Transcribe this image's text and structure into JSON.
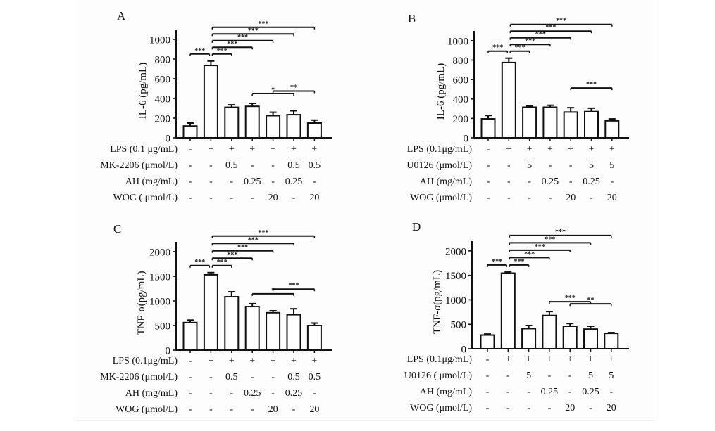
{
  "chart_data": [
    {
      "panel": "A",
      "type": "bar",
      "ylabel": "IL-6 (pg/mL)",
      "ylim": [
        0,
        1100
      ],
      "yticks": [
        0,
        200,
        400,
        600,
        800,
        1000
      ],
      "categories": [
        "1",
        "2",
        "3",
        "4",
        "5",
        "6",
        "7"
      ],
      "values": [
        120,
        735,
        310,
        320,
        225,
        235,
        150
      ],
      "errors": [
        30,
        45,
        25,
        30,
        35,
        40,
        30
      ],
      "treatments": [
        {
          "label": "LPS (0.1 μg/mL)",
          "cells": [
            "-",
            "+",
            "+",
            "+",
            "+",
            "+",
            "+"
          ]
        },
        {
          "label": "MK-2206 (μmol/L)",
          "cells": [
            "-",
            "-",
            "0.5",
            "-",
            "-",
            "0.5",
            "0.5"
          ]
        },
        {
          "label": "AH (mg/mL)",
          "cells": [
            "-",
            "-",
            "-",
            "0.25",
            "-",
            "0.25",
            "-"
          ]
        },
        {
          "label": "WOG ( μmol/L)",
          "cells": [
            "-",
            "-",
            "-",
            "-",
            "20",
            "-",
            "20"
          ]
        }
      ],
      "significance": [
        {
          "from": 1,
          "to": 2,
          "label": "***"
        },
        {
          "from": 2,
          "to": 3,
          "label": "***"
        },
        {
          "from": 2,
          "to": 4,
          "label": "***"
        },
        {
          "from": 2,
          "to": 5,
          "label": "***"
        },
        {
          "from": 2,
          "to": 6,
          "label": "***"
        },
        {
          "from": 2,
          "to": 7,
          "label": "***"
        },
        {
          "from": 4,
          "to": 6,
          "label": "*"
        },
        {
          "from": 5,
          "to": 7,
          "label": "**"
        }
      ]
    },
    {
      "panel": "B",
      "type": "bar",
      "ylabel": "IL-6 (pg/mL)",
      "ylim": [
        0,
        1100
      ],
      "yticks": [
        0,
        200,
        400,
        600,
        800,
        1000
      ],
      "categories": [
        "1",
        "2",
        "3",
        "4",
        "5",
        "6",
        "7"
      ],
      "values": [
        195,
        775,
        315,
        315,
        265,
        270,
        175
      ],
      "errors": [
        35,
        45,
        12,
        20,
        45,
        35,
        20
      ],
      "treatments": [
        {
          "label": "LPS  (0.1μg/mL)",
          "cells": [
            "-",
            "+",
            "+",
            "+",
            "+",
            "+",
            "+"
          ]
        },
        {
          "label": "U0126 (μmol/L)",
          "cells": [
            "-",
            "-",
            "5",
            "-",
            "-",
            "5",
            "5"
          ]
        },
        {
          "label": "AH (mg/mL)",
          "cells": [
            "-",
            "-",
            "-",
            "0.25",
            "-",
            "0.25",
            "-"
          ]
        },
        {
          "label": "WOG (μmol/L)",
          "cells": [
            "-",
            "-",
            "-",
            "-",
            "20",
            "-",
            "20"
          ]
        }
      ],
      "significance": [
        {
          "from": 1,
          "to": 2,
          "label": "***"
        },
        {
          "from": 2,
          "to": 3,
          "label": "***"
        },
        {
          "from": 2,
          "to": 4,
          "label": "***"
        },
        {
          "from": 2,
          "to": 5,
          "label": "***"
        },
        {
          "from": 2,
          "to": 6,
          "label": "***"
        },
        {
          "from": 2,
          "to": 7,
          "label": "***"
        },
        {
          "from": 5,
          "to": 7,
          "label": "***"
        }
      ]
    },
    {
      "panel": "C",
      "type": "bar",
      "ylabel": "TNF-α(pg/mL)",
      "ylim": [
        0,
        2200
      ],
      "yticks": [
        0,
        500,
        1000,
        1500,
        2000
      ],
      "categories": [
        "1",
        "2",
        "3",
        "4",
        "5",
        "6",
        "7"
      ],
      "values": [
        560,
        1530,
        1085,
        885,
        760,
        720,
        500
      ],
      "errors": [
        50,
        45,
        100,
        60,
        40,
        120,
        50
      ],
      "treatments": [
        {
          "label": "LPS (0.1μg/mL)",
          "cells": [
            "-",
            "+",
            "+",
            "+",
            "+",
            "+",
            "+"
          ]
        },
        {
          "label": "MK-2206 (μmol/L)",
          "cells": [
            "-",
            "-",
            "0.5",
            "-",
            "-",
            "0.5",
            "0.5"
          ]
        },
        {
          "label": "AH (mg/mL)",
          "cells": [
            "-",
            "-",
            "-",
            "0.25",
            "-",
            "0.25",
            "-"
          ]
        },
        {
          "label": "WOG (μmol/L)",
          "cells": [
            "-",
            "-",
            "-",
            "-",
            "20",
            "-",
            "20"
          ]
        }
      ],
      "significance": [
        {
          "from": 1,
          "to": 2,
          "label": "***"
        },
        {
          "from": 2,
          "to": 3,
          "label": "***"
        },
        {
          "from": 2,
          "to": 4,
          "label": "***"
        },
        {
          "from": 2,
          "to": 5,
          "label": "***"
        },
        {
          "from": 2,
          "to": 6,
          "label": "***"
        },
        {
          "from": 2,
          "to": 7,
          "label": "***"
        },
        {
          "from": 4,
          "to": 6,
          "label": "*"
        },
        {
          "from": 5,
          "to": 7,
          "label": "***"
        }
      ]
    },
    {
      "panel": "D",
      "type": "bar",
      "ylabel": "TNF-α(pg/mL)",
      "ylim": [
        0,
        2200
      ],
      "yticks": [
        0,
        500,
        1000,
        1500,
        2000
      ],
      "categories": [
        "1",
        "2",
        "3",
        "4",
        "5",
        "6",
        "7"
      ],
      "values": [
        280,
        1545,
        410,
        680,
        460,
        400,
        315
      ],
      "errors": [
        20,
        25,
        65,
        80,
        55,
        60,
        15
      ],
      "treatments": [
        {
          "label": "LPS (0.1μg/mL)",
          "cells": [
            "-",
            "+",
            "+",
            "+",
            "+",
            "+",
            "+"
          ]
        },
        {
          "label": "U0126 ( μmol/L)",
          "cells": [
            "-",
            "-",
            "5",
            "-",
            "-",
            "5",
            "5"
          ]
        },
        {
          "label": "AH (mg/mL)",
          "cells": [
            "-",
            "-",
            "-",
            "0.25",
            "-",
            "0.25",
            "-"
          ]
        },
        {
          "label": "WOG (μmol/L)",
          "cells": [
            "-",
            "-",
            "-",
            "-",
            "20",
            "-",
            "20"
          ]
        }
      ],
      "significance": [
        {
          "from": 1,
          "to": 2,
          "label": "***"
        },
        {
          "from": 2,
          "to": 3,
          "label": "***"
        },
        {
          "from": 2,
          "to": 4,
          "label": "***"
        },
        {
          "from": 2,
          "to": 5,
          "label": "***"
        },
        {
          "from": 2,
          "to": 6,
          "label": "***"
        },
        {
          "from": 2,
          "to": 7,
          "label": "***"
        },
        {
          "from": 4,
          "to": 6,
          "label": "***"
        },
        {
          "from": 5,
          "to": 7,
          "label": "**"
        }
      ]
    }
  ],
  "colors": {
    "ink": "#111111",
    "bar_fill": "#ffffff",
    "background": "#fdfdfd"
  }
}
